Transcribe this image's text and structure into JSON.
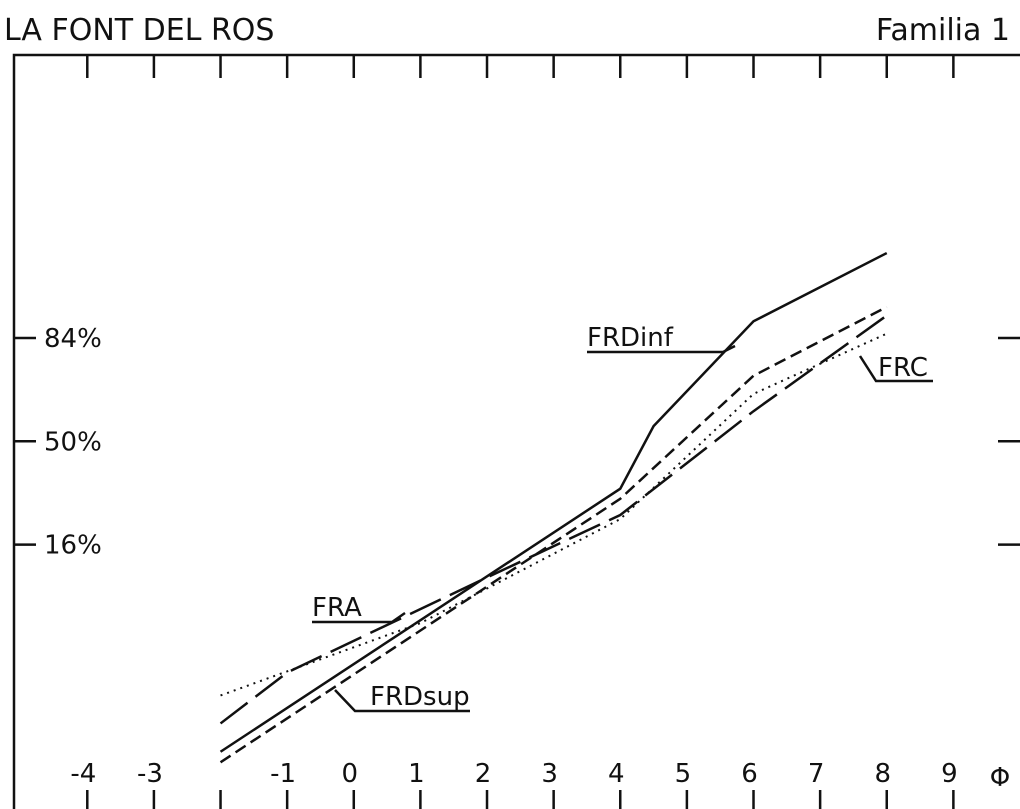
{
  "chart_data": {
    "type": "line",
    "title": "LA FONT DEL ROS",
    "subtitle": "Familia 1",
    "x_label": "Φ",
    "yscale": "probability",
    "xlim": [
      -5.1,
      10
    ],
    "ylim": [
      0.02,
      99.99
    ],
    "xticks": [
      -4,
      -3,
      {
        "value": -2,
        "label": null
      },
      -1,
      0,
      1,
      2,
      3,
      4,
      5,
      6,
      7,
      8,
      9
    ],
    "yticks": [
      {
        "value": 16,
        "label": "16%"
      },
      {
        "value": 50,
        "label": "50%"
      },
      {
        "value": 84,
        "label": "84%"
      }
    ],
    "series": [
      {
        "name": "FRDinf",
        "color": "#111111",
        "style": "solid",
        "x": [
          -2,
          4,
          4.5,
          6,
          8
        ],
        "values": [
          0.14,
          32.4,
          55.8,
          87.6,
          96.5
        ]
      },
      {
        "name": "FRDsup",
        "color": "#111111",
        "style": "dashed",
        "x": [
          -2,
          4,
          6,
          8
        ],
        "values": [
          0.1,
          29,
          73.6,
          90.2
        ]
      },
      {
        "name": "FRA",
        "color": "#111111",
        "style": "longdash",
        "x": [
          -2,
          -1,
          2,
          4,
          6,
          8
        ],
        "values": [
          0.33,
          1.3,
          9.5,
          23.9,
          61.4,
          88.7
        ]
      },
      {
        "name": "FRC",
        "color": "#111111",
        "style": "dotted",
        "x": [
          -2,
          1,
          4,
          6,
          8
        ],
        "values": [
          0.72,
          4,
          22.7,
          67.6,
          85
        ]
      }
    ]
  }
}
